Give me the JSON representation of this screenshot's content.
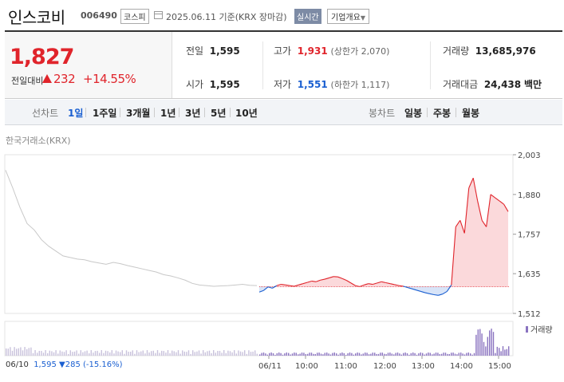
{
  "header": {
    "name": "인스코비",
    "code": "006490",
    "market": "코스피",
    "date": "2025.06.11",
    "basis": "기준(KRX 장마감)",
    "realtime": "실시간",
    "company_info": "기업개요"
  },
  "quote": {
    "price": "1,827",
    "change_label": "전일대비",
    "change": "232",
    "change_pct": "+14.55%",
    "prev_label": "전일",
    "prev": "1,595",
    "open_label": "시가",
    "open": "1,595",
    "high_label": "고가",
    "high": "1,931",
    "upper_limit": "(상한가 2,070)",
    "low_label": "저가",
    "low": "1,551",
    "lower_limit": "(하한가 1,117)",
    "volume_label": "거래량",
    "volume": "13,685,976",
    "amount_label": "거래대금",
    "amount": "24,438",
    "amount_unit": "백만"
  },
  "tabs": {
    "line_label": "선차트",
    "periods": [
      "1일",
      "1주일",
      "3개월",
      "1년",
      "3년",
      "5년",
      "10년"
    ],
    "candle_label": "봉차트",
    "candles": [
      "일봉",
      "주봉",
      "월봉"
    ]
  },
  "chart_source": "한국거래소(KRX)",
  "volume_legend": "거래량",
  "prev_day": {
    "date": "06/10",
    "close": "1,595",
    "change": "285",
    "change_pct": "(-15.16%)"
  },
  "colors": {
    "up": "#e0242b",
    "down": "#1a5fd1",
    "prev_day_line": "#c8c8c8",
    "volume": "#8a73c0"
  },
  "chart_data": {
    "type": "line",
    "y_ticks": [
      "2,003",
      "1,880",
      "1,757",
      "1,635",
      "1,512"
    ],
    "ylim": [
      1512,
      2003
    ],
    "x_ticks": [
      "06/10",
      "06/11",
      "10:00",
      "11:00",
      "12:00",
      "13:00",
      "14:00",
      "15:00"
    ],
    "reference_price": 1595,
    "previous_day": [
      1955,
      1900,
      1840,
      1790,
      1770,
      1740,
      1720,
      1705,
      1690,
      1685,
      1680,
      1678,
      1672,
      1668,
      1664,
      1670,
      1666,
      1660,
      1655,
      1650,
      1645,
      1640,
      1632,
      1628,
      1622,
      1615,
      1605,
      1600,
      1598,
      1596,
      1597,
      1598,
      1600,
      1602,
      1599,
      1598
    ],
    "today": [
      1578,
      1583,
      1594,
      1590,
      1598,
      1602,
      1600,
      1598,
      1596,
      1600,
      1604,
      1608,
      1612,
      1610,
      1615,
      1618,
      1622,
      1626,
      1625,
      1620,
      1614,
      1606,
      1598,
      1595,
      1600,
      1604,
      1602,
      1606,
      1610,
      1607,
      1604,
      1601,
      1598,
      1596,
      1592,
      1588,
      1584,
      1580,
      1576,
      1573,
      1570,
      1568,
      1572,
      1580,
      1600,
      1780,
      1800,
      1760,
      1900,
      1931,
      1860,
      1800,
      1780,
      1880,
      1870,
      1860,
      1850,
      1827
    ]
  }
}
